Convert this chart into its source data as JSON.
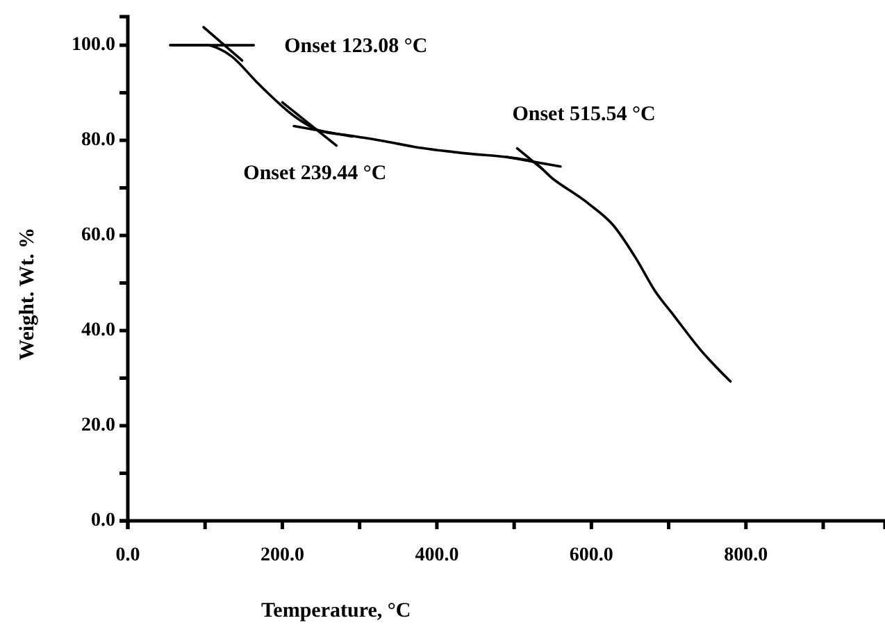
{
  "chart_data": {
    "type": "line",
    "xlabel": "Temperature, °C",
    "ylabel": "Weight. Wt. %",
    "xlim": [
      0,
      980
    ],
    "ylim": [
      0,
      106
    ],
    "xticks": [
      {
        "value": 0,
        "label": "0.0"
      },
      {
        "value": 100,
        "label": null
      },
      {
        "value": 200,
        "label": "200.0"
      },
      {
        "value": 300,
        "label": null
      },
      {
        "value": 400,
        "label": "400.0"
      },
      {
        "value": 500,
        "label": null
      },
      {
        "value": 600,
        "label": "600.0"
      },
      {
        "value": 700,
        "label": null
      },
      {
        "value": 800,
        "label": "800.0"
      },
      {
        "value": 900,
        "label": null
      }
    ],
    "yticks": [
      {
        "value": 0,
        "label": "0.0"
      },
      {
        "value": 10,
        "label": null
      },
      {
        "value": 20,
        "label": "20.0"
      },
      {
        "value": 30,
        "label": null
      },
      {
        "value": 40,
        "label": "40.0"
      },
      {
        "value": 50,
        "label": null
      },
      {
        "value": 60,
        "label": "60.0"
      },
      {
        "value": 70,
        "label": null
      },
      {
        "value": 80,
        "label": "80.0"
      },
      {
        "value": 90,
        "label": null
      },
      {
        "value": 100,
        "label": "100.0"
      }
    ],
    "grid": false,
    "marker": "none",
    "line_style": "solid",
    "series": [
      {
        "color": "#000000",
        "x": [
          55,
          104,
          116,
          134,
          166,
          179,
          216,
          247,
          292,
          333,
          372,
          429,
          521,
          551,
          597,
          628,
          658,
          682,
          707,
          742,
          780
        ],
        "values": [
          100,
          100,
          99.4,
          97.7,
          92.4,
          90.3,
          85,
          82.1,
          80.9,
          79.8,
          78.6,
          77.4,
          75.7,
          71.8,
          66.6,
          62.2,
          55.1,
          48.4,
          43.1,
          35.8,
          29.3
        ]
      },
      {
        "color": "#000000",
        "x": [
          55,
          163
        ],
        "values": [
          100,
          100
        ]
      },
      {
        "color": "#000000",
        "x": [
          98,
          148
        ],
        "values": [
          103.8,
          96.8
        ]
      },
      {
        "color": "#000000",
        "x": [
          200,
          270
        ],
        "values": [
          88,
          78.9
        ]
      },
      {
        "color": "#000000",
        "x": [
          215,
          290
        ],
        "values": [
          83,
          80.8
        ]
      },
      {
        "color": "#000000",
        "x": [
          504,
          537
        ],
        "values": [
          78.3,
          73.9
        ]
      },
      {
        "color": "#000000",
        "x": [
          490,
          560
        ],
        "values": [
          76.5,
          74.5
        ]
      }
    ],
    "annotations": [
      {
        "text": "Onset 123.08 °C",
        "x": 123.08,
        "y": 100
      },
      {
        "text": "Onset 239.44 °C",
        "x": 239.44,
        "y": 82
      },
      {
        "text": "Onset 515.54 °C",
        "x": 515.54,
        "y": 76
      }
    ]
  }
}
